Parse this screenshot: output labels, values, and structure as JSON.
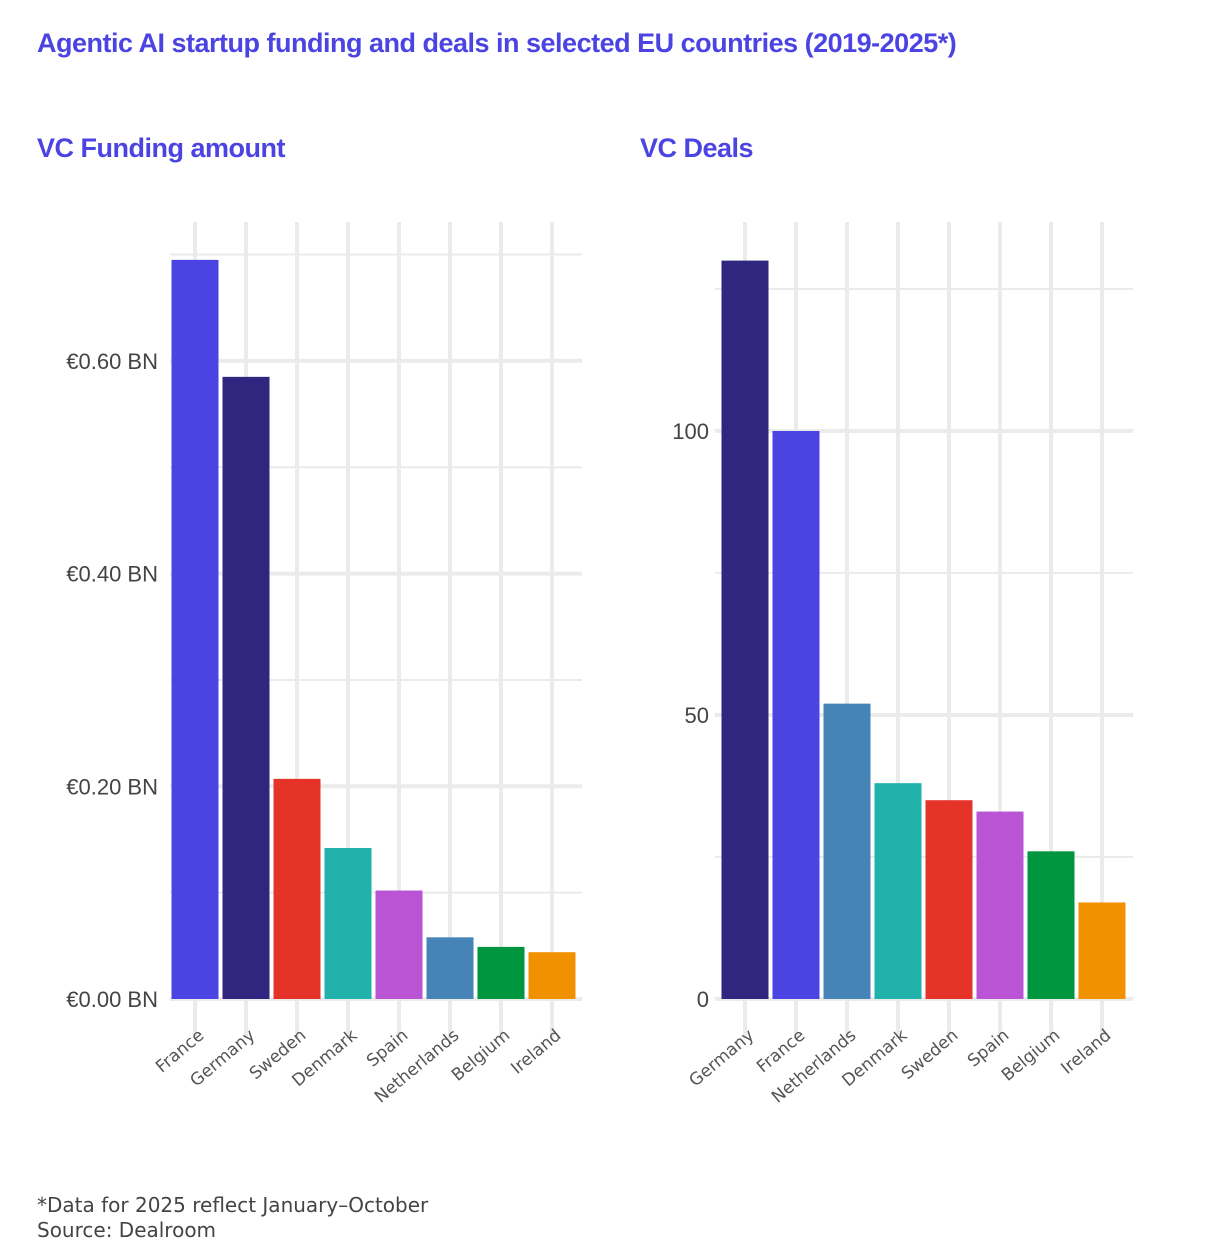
{
  "title": "Agentic AI startup funding and deals in selected EU countries (2019-2025*)",
  "footnote": "*Data for 2025 reflect January–October",
  "source": "Source: Dealroom",
  "colors": {
    "France": "#4b44e3",
    "Germany": "#30257f",
    "Sweden": "#e5332a",
    "Denmark": "#21b2ac",
    "Spain": "#b955d5",
    "Netherlands": "#4684b8",
    "Belgium": "#00963f",
    "Ireland": "#f29100",
    "grid": "#ebebeb",
    "title": "#4b44e3"
  },
  "chart_data": [
    {
      "type": "bar",
      "title": "VC Funding amount",
      "xlabel": "",
      "ylabel": "",
      "categories": [
        "France",
        "Germany",
        "Sweden",
        "Denmark",
        "Spain",
        "Netherlands",
        "Belgium",
        "Ireland"
      ],
      "values": [
        0.695,
        0.585,
        0.207,
        0.142,
        0.102,
        0.058,
        0.049,
        0.044
      ],
      "unit": "€ BN",
      "ylim": [
        0,
        0.7
      ],
      "yticks": [
        0,
        0.2,
        0.4,
        0.6
      ],
      "ytick_labels": [
        "€0.00 BN",
        "€0.20 BN",
        "€0.40 BN",
        "€0.60 BN"
      ],
      "minor_ticks": [
        0.1,
        0.3,
        0.5,
        0.7
      ],
      "grid": true,
      "legend": "none"
    },
    {
      "type": "bar",
      "title": "VC Deals",
      "xlabel": "",
      "ylabel": "",
      "categories": [
        "Germany",
        "France",
        "Netherlands",
        "Denmark",
        "Sweden",
        "Spain",
        "Belgium",
        "Ireland"
      ],
      "values": [
        130,
        100,
        52,
        38,
        35,
        33,
        26,
        17
      ],
      "ylim": [
        0,
        130
      ],
      "yticks": [
        0,
        50,
        100
      ],
      "ytick_labels": [
        "0",
        "50",
        "100"
      ],
      "minor_ticks": [
        25,
        75,
        125
      ],
      "grid": true,
      "legend": "none"
    }
  ]
}
